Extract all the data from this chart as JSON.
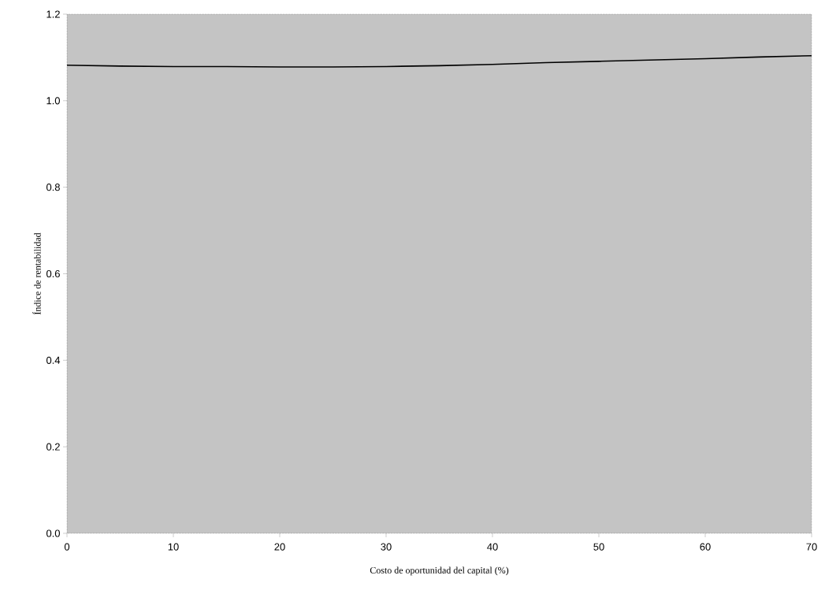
{
  "chart_data": {
    "type": "line",
    "xlabel": "Costo de oportunidad del capital (%)",
    "ylabel": "Índice de rentabilidad",
    "x": [
      0,
      5,
      10,
      15,
      20,
      25,
      30,
      35,
      40,
      45,
      50,
      55,
      60,
      65,
      70
    ],
    "series": [
      {
        "color": "#000000",
        "values": [
          1.082,
          1.08,
          1.079,
          1.079,
          1.078,
          1.078,
          1.079,
          1.081,
          1.084,
          1.088,
          1.091,
          1.094,
          1.097,
          1.101,
          1.104
        ]
      }
    ],
    "xlim": [
      0,
      70
    ],
    "xticks": [
      0,
      10,
      20,
      30,
      40,
      50,
      60,
      70
    ],
    "ylim": [
      0,
      1.2
    ],
    "yticks": [
      {
        "value": 0,
        "label": "0.0"
      },
      {
        "value": 0.2,
        "label": "0.2"
      },
      {
        "value": 0.4,
        "label": "0.4"
      },
      {
        "value": 0.6,
        "label": "0.6"
      },
      {
        "value": 0.8,
        "label": "0.8"
      },
      {
        "value": 1.0,
        "label": "1.0"
      },
      {
        "value": 1.2,
        "label": "1.2"
      }
    ],
    "marker": "none",
    "line_style": "solid"
  }
}
